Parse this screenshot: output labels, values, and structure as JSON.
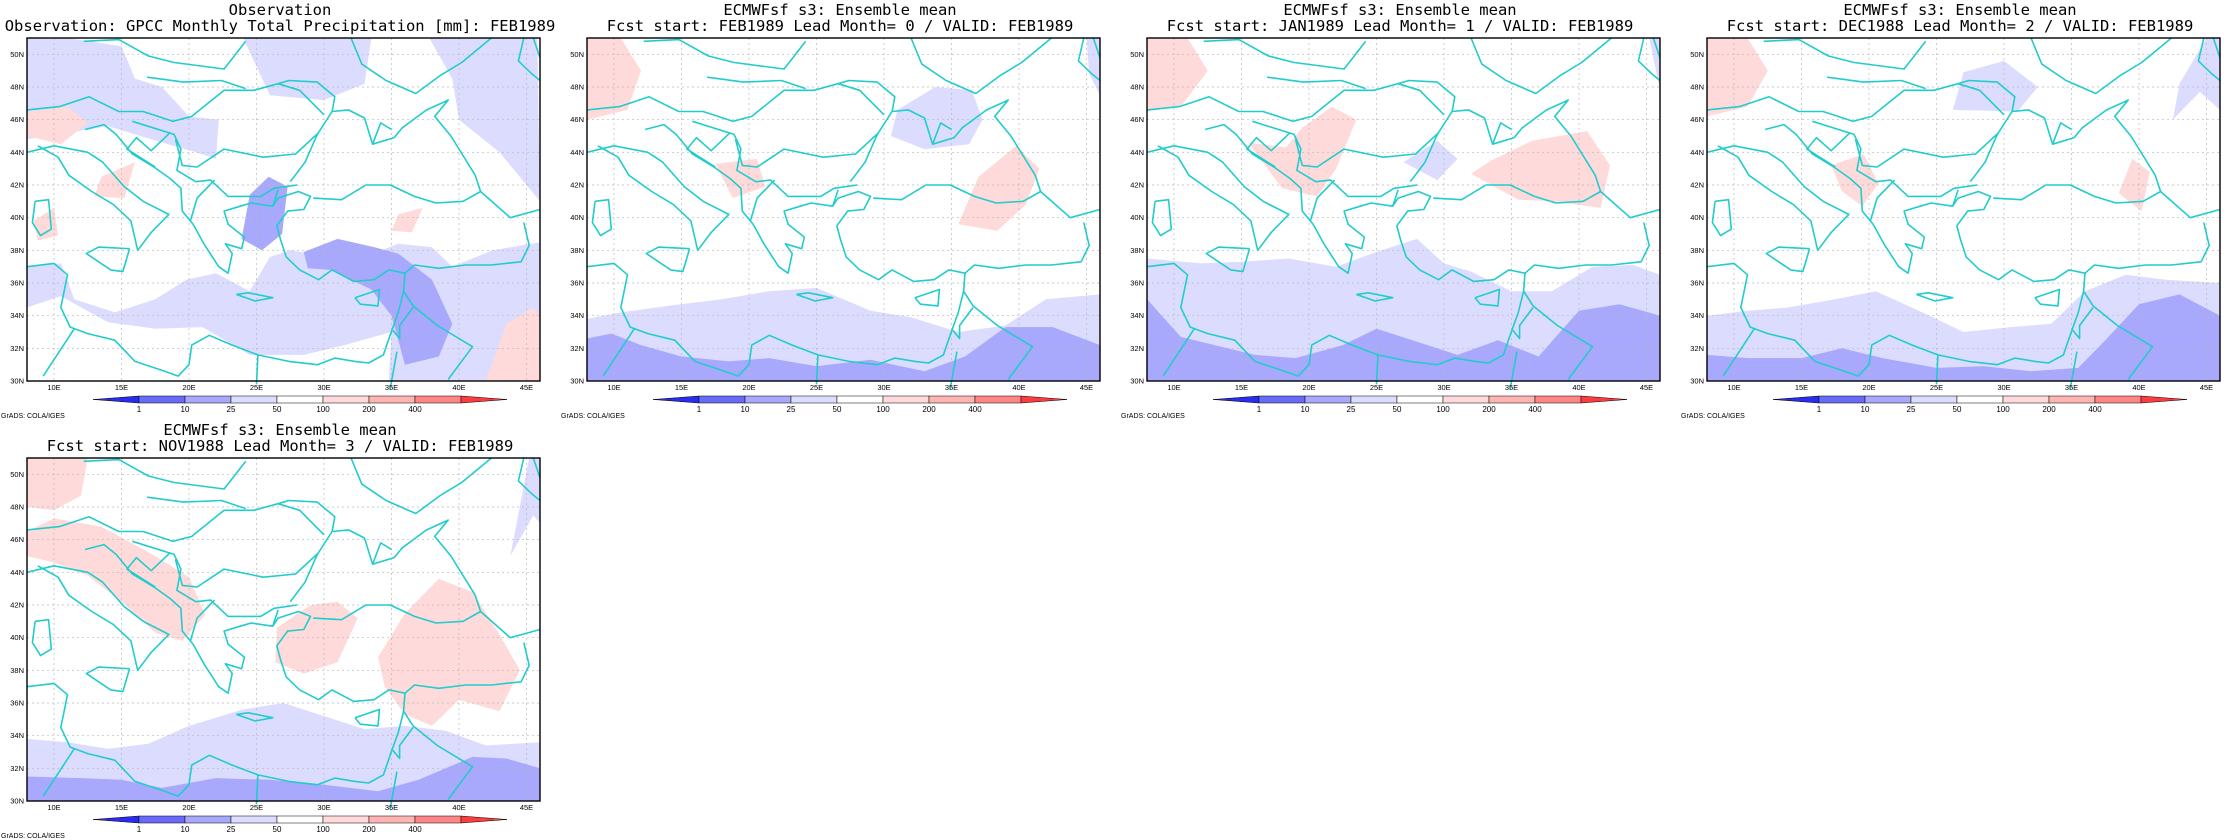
{
  "panels": [
    {
      "line1": "Observation",
      "line2": "Observation: GPCC Monthly Total Precipitation [mm]: FEB1989",
      "credit": "GrADS: COLA/IGES",
      "variant": "obs"
    },
    {
      "line1": "ECMWFsf s3: Ensemble mean",
      "line2": "Fcst start: FEB1989  Lead Month= 0 / VALID: FEB1989",
      "credit": "GrADS: COLA/IGES",
      "variant": "lead0"
    },
    {
      "line1": "ECMWFsf s3: Ensemble mean",
      "line2": "Fcst start: JAN1989  Lead Month= 1 / VALID: FEB1989",
      "credit": "GrADS: COLA/IGES",
      "variant": "lead1"
    },
    {
      "line1": "ECMWFsf s3: Ensemble mean",
      "line2": "Fcst start: DEC1988  Lead Month= 2 / VALID: FEB1989",
      "credit": "GrADS: COLA/IGES",
      "variant": "lead2"
    },
    {
      "line1": "ECMWFsf s3: Ensemble mean",
      "line2": "Fcst start: NOV1988  Lead Month= 3 / VALID: FEB1989",
      "credit": "GrADS: COLA/IGES",
      "variant": "lead3"
    }
  ],
  "map_extent": {
    "lon": [
      8,
      46
    ],
    "lat": [
      30,
      51
    ]
  },
  "lat_ticks": [
    "30N",
    "32N",
    "34N",
    "36N",
    "38N",
    "40N",
    "42N",
    "44N",
    "46N",
    "48N",
    "50N"
  ],
  "lat_values": [
    30,
    32,
    34,
    36,
    38,
    40,
    42,
    44,
    46,
    48,
    50
  ],
  "lon_ticks": [
    "10E",
    "15E",
    "20E",
    "25E",
    "30E",
    "35E",
    "40E",
    "45E"
  ],
  "lon_values": [
    10,
    15,
    20,
    25,
    30,
    35,
    40,
    45
  ],
  "colorbar": {
    "labels": [
      "1",
      "10",
      "25",
      "50",
      "100",
      "200",
      "400"
    ],
    "colors": [
      "#2a2af0",
      "#6a6af8",
      "#a8a8fc",
      "#dcdcfe",
      "#ffffff",
      "#ffdada",
      "#ffb4b4",
      "#ff8686",
      "#ff3c3c"
    ]
  },
  "colors": {
    "coastline": "#22cccc",
    "grid": "#b8b8b8",
    "frame": "#000000",
    "light_blue": "#dcdcfe",
    "mid_blue": "#a8a8fc",
    "light_red": "#ffdada"
  }
}
